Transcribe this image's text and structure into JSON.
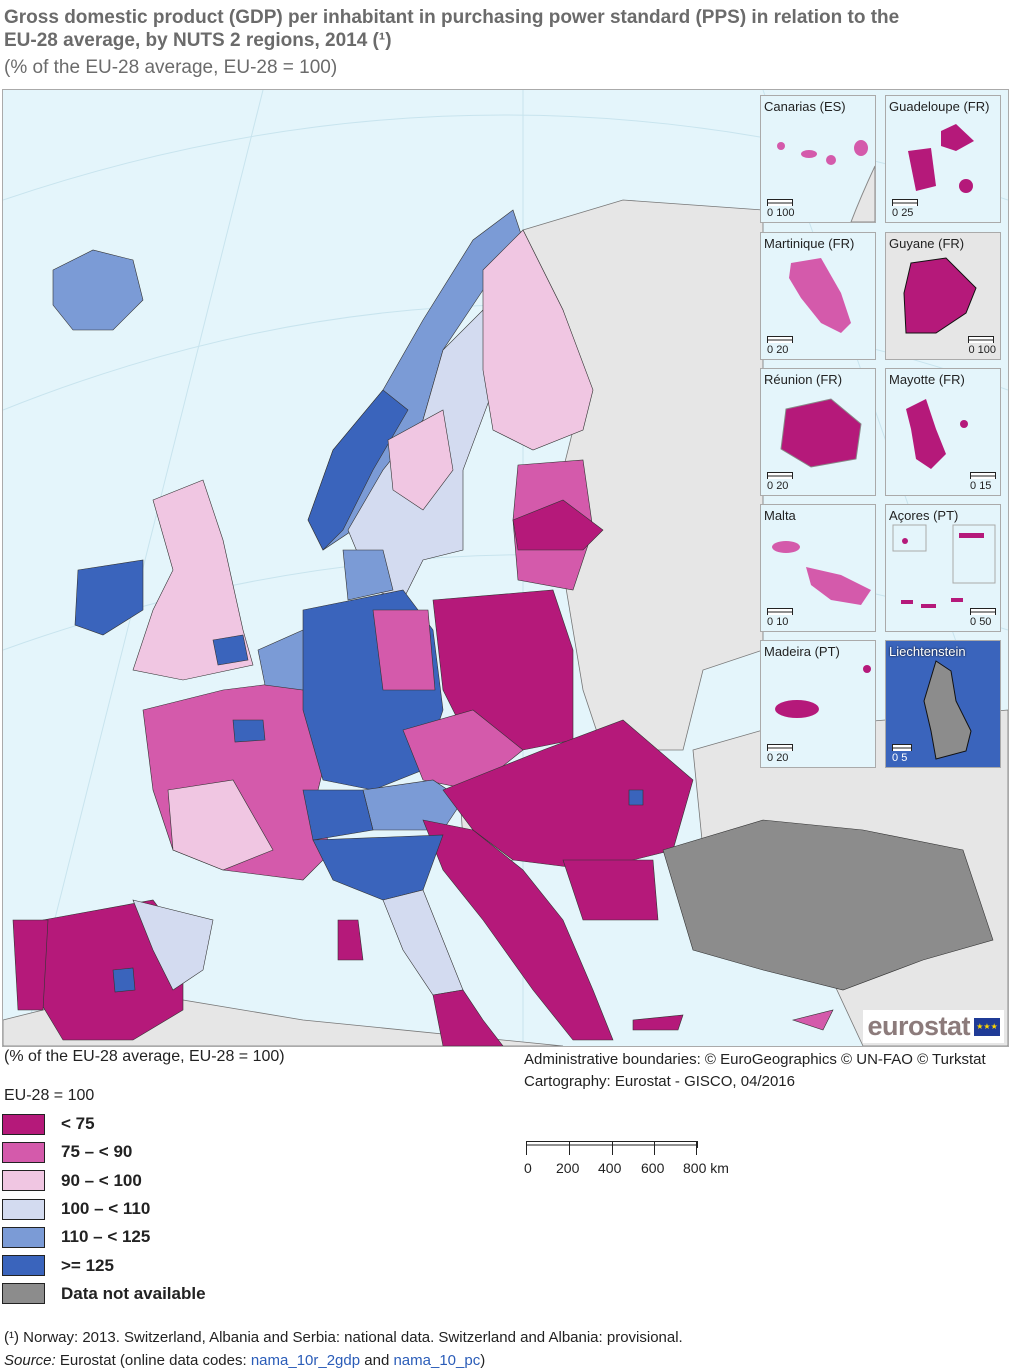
{
  "title": "Gross domestic product (GDP) per inhabitant in purchasing power standard (PPS) in relation to the EU-28 average, by NUTS 2 regions, 2014 (¹)",
  "subtitle": "(% of the EU-28 average, EU-28 = 100)",
  "map": {
    "sea_color": "#e4f5fb",
    "non_eu_land_color": "#e6e6e6",
    "insets": [
      {
        "label": "Canarias (ES)",
        "scale": [
          "0",
          "100"
        ],
        "class": "75 – < 90"
      },
      {
        "label": "Guadeloupe (FR)",
        "scale": [
          "0",
          "25"
        ],
        "class": "< 75"
      },
      {
        "label": "Martinique (FR)",
        "scale": [
          "0",
          "20"
        ],
        "class": "75 – < 90"
      },
      {
        "label": "Guyane (FR)",
        "scale": [
          "0",
          "100"
        ],
        "class": "< 75"
      },
      {
        "label": "Réunion (FR)",
        "scale": [
          "0",
          "20"
        ],
        "class": "< 75"
      },
      {
        "label": "Mayotte (FR)",
        "scale": [
          "0",
          "15"
        ],
        "class": "< 75"
      },
      {
        "label": "Malta",
        "scale": [
          "0",
          "10"
        ],
        "class": "75 – < 90"
      },
      {
        "label": "Açores (PT)",
        "scale": [
          "0",
          "50"
        ],
        "class": "< 75"
      },
      {
        "label": "Madeira (PT)",
        "scale": [
          "0",
          "20"
        ],
        "class": "< 75"
      },
      {
        "label": "Liechtenstein",
        "scale": [
          "0",
          "5"
        ],
        "class": "Data not available"
      }
    ],
    "logo_text": "eurostat"
  },
  "below_map_subtitle": "(% of the EU-28 average, EU-28 = 100)",
  "credits": {
    "line1": "Administrative boundaries: © EuroGeographics © UN-FAO © Turkstat",
    "line2": "Cartography: Eurostat - GISCO, 04/2016"
  },
  "legend": {
    "title": "EU-28 = 100",
    "items": [
      {
        "label": "< 75",
        "color": "#b5197a"
      },
      {
        "label": "75 – < 90",
        "color": "#d45aab"
      },
      {
        "label": "90 – < 100",
        "color": "#f0c6e2"
      },
      {
        "label": "100 – < 110",
        "color": "#d3dbf0"
      },
      {
        "label": "110 – < 125",
        "color": "#7b9bd6"
      },
      {
        "label": ">= 125",
        "color": "#3a64bc"
      },
      {
        "label": "Data not available",
        "color": "#8c8c8c"
      }
    ]
  },
  "scale_bar": {
    "ticks": [
      "0",
      "200",
      "400",
      "600",
      "800 km"
    ]
  },
  "footnote": "(¹) Norway: 2013. Switzerland, Albania and Serbia: national data. Switzerland and Albania: provisional.",
  "source": {
    "prefix": "Source:",
    "text": " Eurostat (online data codes: ",
    "code1": "nama_10r_2gdp",
    "and": " and ",
    "code2": "nama_10_pc",
    "suffix": ")"
  }
}
